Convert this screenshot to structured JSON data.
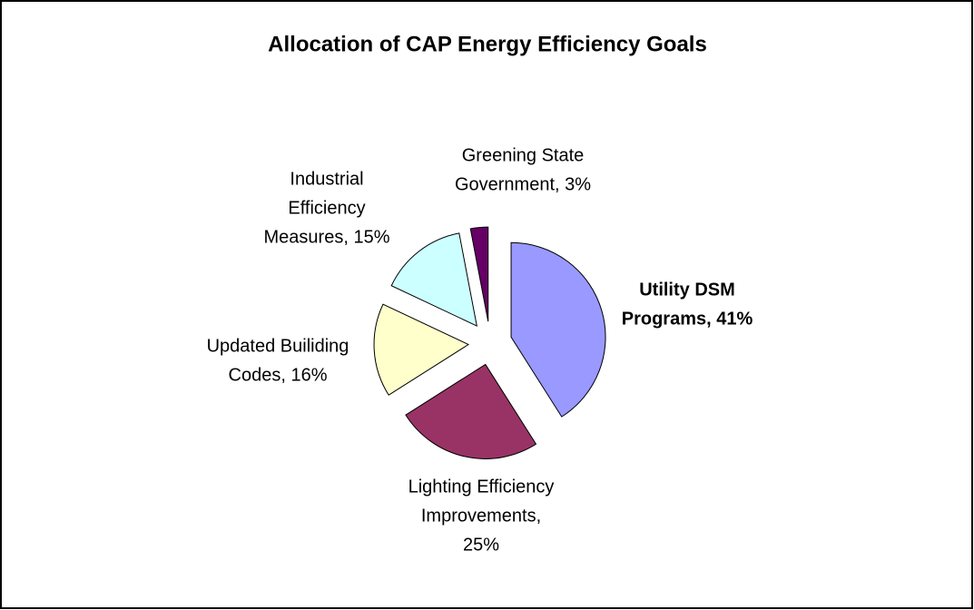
{
  "chart_data": {
    "type": "pie",
    "title": "Allocation of CAP Energy Efficiency Goals",
    "labels": [
      [
        "Utility DSM",
        "Programs, 41%"
      ],
      [
        "Lighting Efficiency",
        "Improvements,",
        "25%"
      ],
      [
        "Updated Builiding",
        "Codes, 16%"
      ],
      [
        "Industrial",
        "Efficiency",
        "Measures, 15%"
      ],
      [
        "Greening State",
        "Government, 3%"
      ]
    ],
    "values": [
      41,
      25,
      16,
      15,
      3
    ],
    "colors": [
      "#9999ff",
      "#993366",
      "#ffffcc",
      "#ccffff",
      "#660066"
    ]
  }
}
